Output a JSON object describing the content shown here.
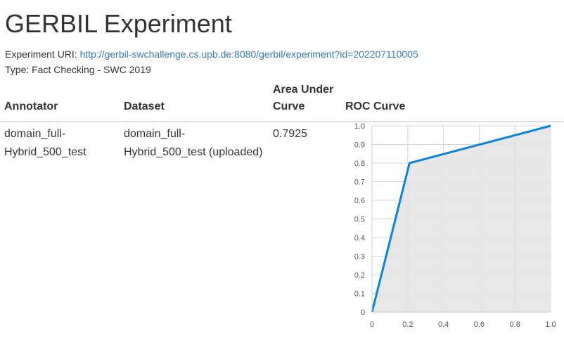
{
  "page": {
    "title": "GERBIL Experiment",
    "uri_label": "Experiment URI:",
    "uri": "http://gerbil-swchallenge.cs.upb.de:8080/gerbil/experiment?id=202207110005",
    "type_text": "Type: Fact Checking - SWC 2019"
  },
  "table": {
    "headers": {
      "annotator": "Annotator",
      "dataset": "Dataset",
      "auc": "Area Under Curve",
      "roc": "ROC Curve"
    },
    "rows": [
      {
        "annotator": "domain_full-Hybrid_500_test",
        "dataset": "domain_full-Hybrid_500_test (uploaded)",
        "auc": "0.7925"
      }
    ]
  },
  "colors": {
    "accent": "#0a84d8",
    "fill": "#e4e4e4",
    "link": "#337ab7",
    "grid": "#d6d6d6"
  },
  "chart_data": {
    "type": "area",
    "title": "",
    "xlabel": "",
    "ylabel": "",
    "xlim": [
      0,
      1
    ],
    "ylim": [
      0,
      1
    ],
    "grid": true,
    "x_ticks": [
      "0",
      "0.2",
      "0.4",
      "0.6",
      "0.8",
      "1.0"
    ],
    "y_ticks": [
      "0",
      "0.1",
      "0.2",
      "0.3",
      "0.4",
      "0.5",
      "0.6",
      "0.7",
      "0.8",
      "0.9",
      "1.0"
    ],
    "series": [
      {
        "x": [
          0,
          0.21,
          1.0
        ],
        "y": [
          0,
          0.8,
          1.0
        ]
      }
    ]
  }
}
